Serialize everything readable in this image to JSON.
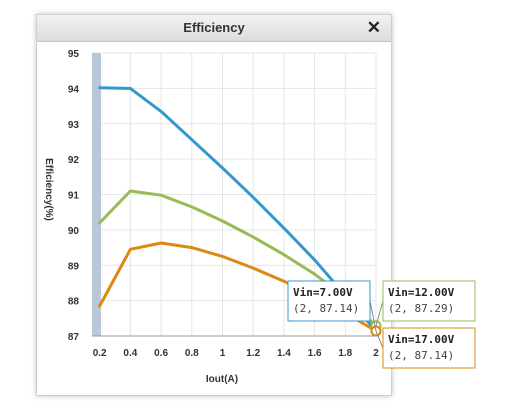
{
  "window": {
    "title": "Efficiency",
    "close_icon": "close-icon"
  },
  "chart_data": {
    "type": "line",
    "title": "Efficiency",
    "xlabel": "Iout(A)",
    "ylabel": "Efficiency(%)",
    "xlim": [
      0.15,
      2.0
    ],
    "ylim": [
      87,
      95
    ],
    "x_ticks": [
      "0.2",
      "0.4",
      "0.6",
      "0.8",
      "1",
      "1.2",
      "1.4",
      "1.6",
      "1.8",
      "2"
    ],
    "y_ticks": [
      "87",
      "88",
      "89",
      "90",
      "91",
      "92",
      "93",
      "94",
      "95"
    ],
    "grid": true,
    "series": [
      {
        "name": "Vin=7.00V",
        "color": "#3399cc",
        "x": [
          0.2,
          0.4,
          0.6,
          0.8,
          1.0,
          1.2,
          1.4,
          1.6,
          1.8,
          2.0
        ],
        "y": [
          94.02,
          94.0,
          93.35,
          92.55,
          91.75,
          90.92,
          90.05,
          89.15,
          88.15,
          87.14
        ]
      },
      {
        "name": "Vin=12.00V",
        "color": "#99bb55",
        "x": [
          0.2,
          0.4,
          0.6,
          0.8,
          1.0,
          1.2,
          1.4,
          1.6,
          1.8,
          2.0
        ],
        "y": [
          90.2,
          91.1,
          90.98,
          90.65,
          90.25,
          89.8,
          89.3,
          88.75,
          88.1,
          87.29
        ]
      },
      {
        "name": "Vin=17.00V",
        "color": "#dd8811",
        "x": [
          0.2,
          0.4,
          0.6,
          0.8,
          1.0,
          1.2,
          1.4,
          1.6,
          1.8,
          2.0
        ],
        "y": [
          87.85,
          89.45,
          89.63,
          89.5,
          89.25,
          88.92,
          88.55,
          88.1,
          87.65,
          87.14
        ]
      }
    ],
    "tooltips": [
      {
        "series": "Vin=7.00V",
        "title": "Vin=7.00V",
        "value": "(2, 87.14)",
        "border": "#3399cc"
      },
      {
        "series": "Vin=12.00V",
        "title": "Vin=12.00V",
        "value": "(2, 87.29)",
        "border": "#99bb55"
      },
      {
        "series": "Vin=17.00V",
        "title": "Vin=17.00V",
        "value": "(2, 87.14)",
        "border": "#dd8811"
      }
    ]
  }
}
